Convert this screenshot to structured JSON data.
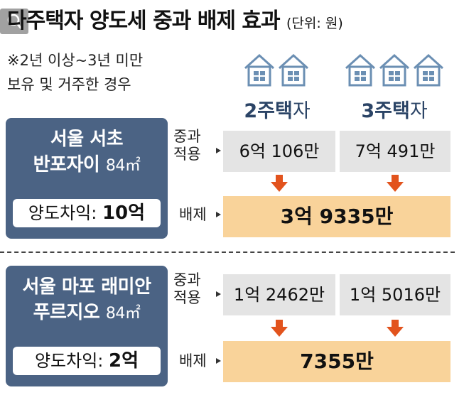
{
  "header": {
    "title": "다주택자 양도세 중과 배제 효과",
    "unit": "(단위: 원)"
  },
  "note": {
    "line1": "※2년 이상~3년 미만",
    "line2": "보유 및 거주한 경우"
  },
  "columns": [
    {
      "label": "2주택",
      "suffix": "자",
      "house_count": 2
    },
    {
      "label": "3주택",
      "suffix": "자",
      "house_count": 3
    }
  ],
  "row_labels": {
    "surcharge_line1": "중과",
    "surcharge_line2": "적용",
    "exclusion": "배제"
  },
  "cases": [
    {
      "name_line1": "서울 서초",
      "name_line2": "반포자이",
      "area": "84㎡",
      "gain_label": "양도차익:",
      "gain_value": "10억",
      "surcharge": [
        "6억 106만",
        "7억 491만"
      ],
      "exclusion": "3억 9335만"
    },
    {
      "name_line1": "서울 마포 래미안",
      "name_line2": "푸르지오",
      "area": "84㎡",
      "gain_label": "양도차익:",
      "gain_value": "2억",
      "surcharge": [
        "1억 2462만",
        "1억 5016만"
      ],
      "exclusion": "7355만"
    }
  ],
  "colors": {
    "panel": "#4b6384",
    "cell_gray": "#e4e4e4",
    "result_orange": "#f9d39a",
    "arrow": "#e2531d",
    "house": "#6b8fb3",
    "label_blue": "#2b4466"
  },
  "icons": [
    "house-icon",
    "down-arrow-icon",
    "search-icon"
  ]
}
